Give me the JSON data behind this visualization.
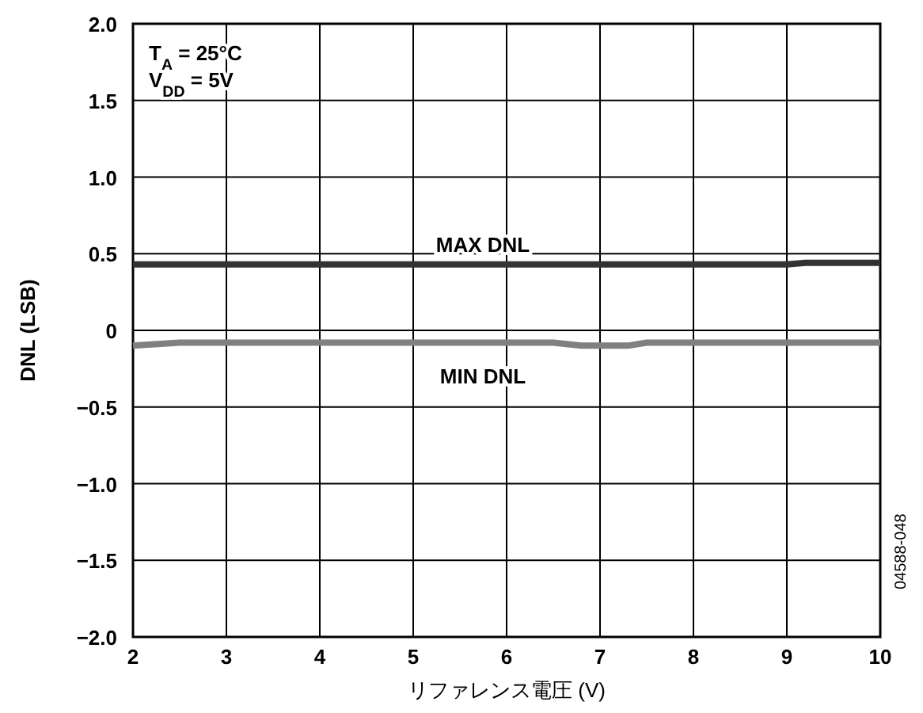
{
  "chart_data": {
    "type": "line",
    "xlabel": "リファレンス電圧 (V)",
    "ylabel": "DNL (LSB)",
    "xlim": [
      2,
      10
    ],
    "xticks": [
      2,
      3,
      4,
      5,
      6,
      7,
      8,
      9,
      10
    ],
    "ylim": [
      -2,
      2
    ],
    "yticks": [
      {
        "value": -2,
        "label": "−2.0"
      },
      {
        "value": -1.5,
        "label": "−1.5"
      },
      {
        "value": -1,
        "label": "−1.0"
      },
      {
        "value": -0.5,
        "label": "−0.5"
      },
      0,
      {
        "value": 0.5,
        "label": "0.5"
      },
      {
        "value": 1,
        "label": "1.0"
      },
      {
        "value": 1.5,
        "label": "1.5"
      },
      {
        "value": 2,
        "label": "2.0"
      }
    ],
    "grid": true,
    "marker": "none",
    "line_style": "solid",
    "series": [
      {
        "name": "MAX DNL",
        "color": "#333333",
        "x": [
          2,
          9,
          9.2,
          10
        ],
        "values": [
          0.43,
          0.43,
          0.44,
          0.44
        ]
      },
      {
        "name": "MIN DNL",
        "color": "#808080",
        "x": [
          2,
          2.5,
          6.5,
          6.8,
          7.3,
          7.5,
          10
        ],
        "values": [
          -0.1,
          -0.08,
          -0.08,
          -0.1,
          -0.1,
          -0.08,
          -0.08
        ]
      }
    ],
    "annotations": [
      "T$_{A}$ = 25°C",
      "V$_{DD}$ = 5V",
      "04588-048"
    ]
  }
}
